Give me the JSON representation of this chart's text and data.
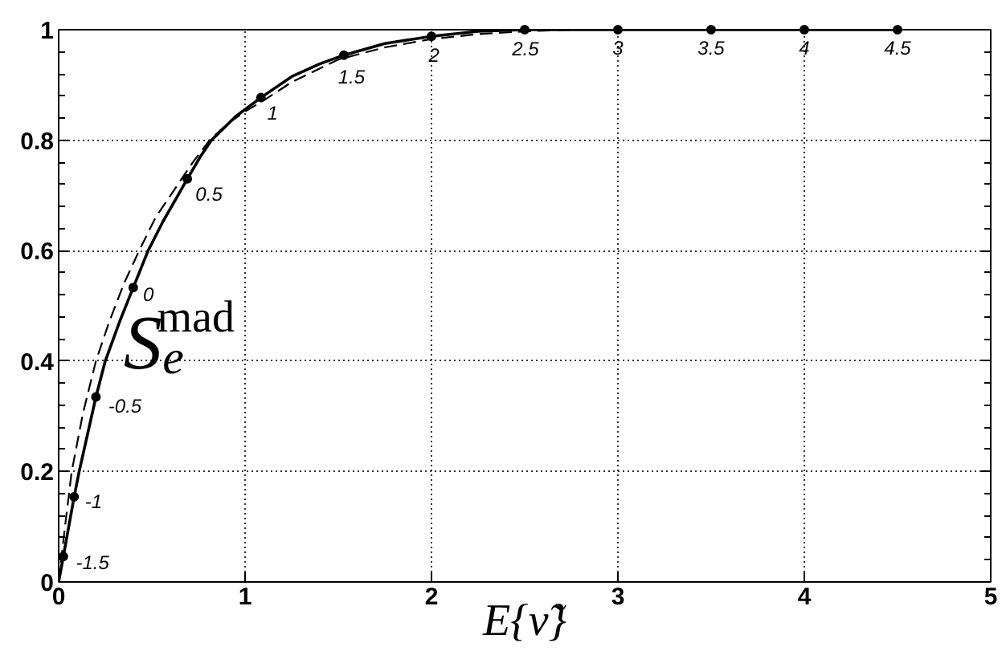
{
  "chart_data": {
    "type": "line",
    "xlabel": "E{ν̃}",
    "xlim": [
      0,
      5
    ],
    "ylim": [
      0,
      1
    ],
    "xticks": [
      0,
      1,
      2,
      3,
      4,
      5
    ],
    "yticks": [
      0,
      {
        "value": 0.04,
        "label": null
      },
      {
        "value": 0.08,
        "label": null
      },
      {
        "value": 0.12,
        "label": null
      },
      {
        "value": 0.16,
        "label": null
      },
      0.2,
      {
        "value": 0.24,
        "label": null
      },
      {
        "value": 0.28,
        "label": null
      },
      {
        "value": 0.32,
        "label": null
      },
      {
        "value": 0.36,
        "label": null
      },
      0.4,
      {
        "value": 0.44,
        "label": null
      },
      {
        "value": 0.48,
        "label": null
      },
      {
        "value": 0.52,
        "label": null
      },
      {
        "value": 0.56,
        "label": null
      },
      0.6,
      {
        "value": 0.64,
        "label": null
      },
      {
        "value": 0.68,
        "label": null
      },
      {
        "value": 0.72,
        "label": null
      },
      {
        "value": 0.76,
        "label": null
      },
      0.8,
      {
        "value": 0.84,
        "label": null
      },
      {
        "value": 0.88,
        "label": null
      },
      {
        "value": 0.92,
        "label": null
      },
      {
        "value": 0.96,
        "label": null
      },
      1
    ],
    "grid": true,
    "series": [
      {
        "color": "#000000",
        "line_style": "solid",
        "x": [
          0,
          0.025,
          0.083,
          0.11,
          0.2,
          0.25,
          0.33,
          0.4,
          0.48,
          0.56,
          0.64,
          0.69,
          0.76,
          0.82,
          0.95,
          1.085,
          1.25,
          1.4,
          1.53,
          1.75,
          2,
          2.25,
          2.5,
          3,
          3.5,
          4,
          4.5
        ],
        "values": [
          0,
          0.046,
          0.154,
          0.2,
          0.335,
          0.4,
          0.474,
          0.533,
          0.6,
          0.653,
          0.7,
          0.73,
          0.77,
          0.8,
          0.843,
          0.877,
          0.915,
          0.938,
          0.954,
          0.975,
          0.988,
          0.997,
          1,
          1,
          1,
          1,
          1
        ]
      },
      {
        "color": "#000000",
        "line_style": "dashed",
        "x": [
          0,
          0.034,
          0.07,
          0.13,
          0.2,
          0.27,
          0.35,
          0.432,
          0.52,
          0.62,
          0.72,
          0.81,
          0.9,
          1,
          1.1,
          1.25,
          1.5,
          1.75,
          2,
          2.25,
          2.5,
          2.75
        ],
        "values": [
          0,
          0.1,
          0.2,
          0.305,
          0.4,
          0.47,
          0.54,
          0.6,
          0.66,
          0.71,
          0.76,
          0.8,
          0.828,
          0.852,
          0.872,
          0.905,
          0.946,
          0.968,
          0.983,
          0.992,
          0.997,
          1
        ]
      },
      {
        "type": "scatter",
        "color": "#000000",
        "marker": "circle",
        "x": [
          0.025,
          0.083,
          0.2,
          0.4,
          0.69,
          1.085,
          1.53,
          2,
          2.5,
          3,
          3.5,
          4,
          4.5
        ],
        "values": [
          0.046,
          0.154,
          0.335,
          0.533,
          0.73,
          0.877,
          0.954,
          0.988,
          1,
          1,
          1,
          1,
          1
        ]
      }
    ],
    "annotations": [
      "S$_{e}$$^{mad}$",
      {
        "text": "-1.5",
        "x": 0.025,
        "y": 0.046
      },
      {
        "text": "-1",
        "x": 0.083,
        "y": 0.154
      },
      {
        "text": "-0.5",
        "x": 0.2,
        "y": 0.335
      },
      {
        "text": "0",
        "x": 0.4,
        "y": 0.533
      },
      {
        "text": "0.5",
        "x": 0.69,
        "y": 0.73
      },
      {
        "text": "1",
        "x": 1.085,
        "y": 0.877
      },
      {
        "text": "1.5",
        "x": 1.53,
        "y": 0.954
      },
      {
        "text": "2",
        "x": 2,
        "y": 0.988
      },
      {
        "text": "2.5",
        "x": 2.5,
        "y": 1
      },
      {
        "text": "3",
        "x": 3,
        "y": 1
      },
      {
        "text": "3.5",
        "x": 3.5,
        "y": 1
      },
      {
        "text": "4",
        "x": 4,
        "y": 1
      },
      {
        "text": "4.5",
        "x": 4.5,
        "y": 1
      }
    ]
  }
}
